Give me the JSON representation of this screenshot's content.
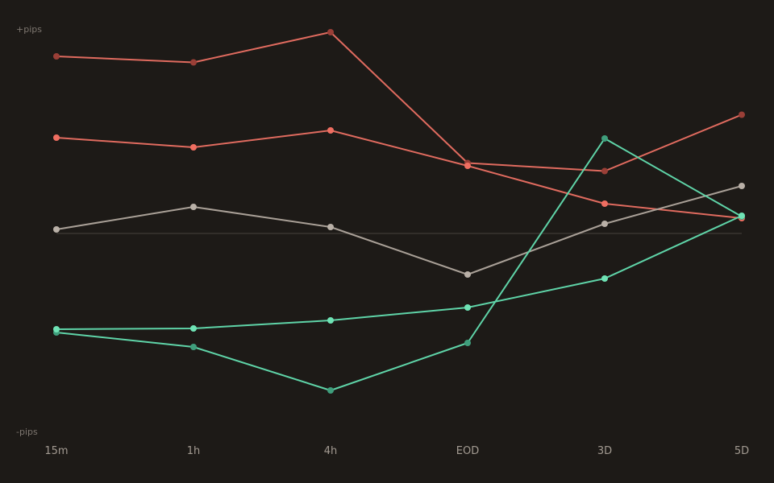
{
  "chart_data": {
    "type": "line",
    "title": "",
    "xlabel": "",
    "ylabel": "",
    "categories": [
      "15m",
      "1h",
      "4h",
      "EOD",
      "3D",
      "5D"
    ],
    "y_top_label": "+pips",
    "y_bottom_label": "-pips",
    "ylim": [
      -100,
      100
    ],
    "zero_line": true,
    "grid": false,
    "series": [
      {
        "color": "#e06b5f",
        "point_color": "#9a3f37",
        "values": [
          88,
          85,
          100,
          35,
          31,
          59
        ]
      },
      {
        "color": "#e06b5f",
        "point_color": "#ef6e61",
        "values": [
          47.6,
          42.8,
          51.2,
          33.6,
          14.8,
          7.6
        ]
      },
      {
        "color": "#a9a097",
        "point_color": "#b9b0a7",
        "values": [
          2,
          13.2,
          3.2,
          -20.4,
          4.8,
          23.6
        ]
      },
      {
        "color": "#5fd4a8",
        "point_color": "#3f9e7c",
        "values": [
          -49.2,
          -56.4,
          -78,
          -54.4,
          47.2,
          8.4
        ]
      },
      {
        "color": "#5fd4a8",
        "point_color": "#6fe3b5",
        "values": [
          -47.6,
          -47.2,
          -43.2,
          -36.8,
          -22.4,
          8.8
        ]
      }
    ],
    "colors": {
      "background": "#1d1a17",
      "zero_line": "#3a3530",
      "tick_text": "#a39b92",
      "y_label_text": "#7d766f"
    }
  }
}
